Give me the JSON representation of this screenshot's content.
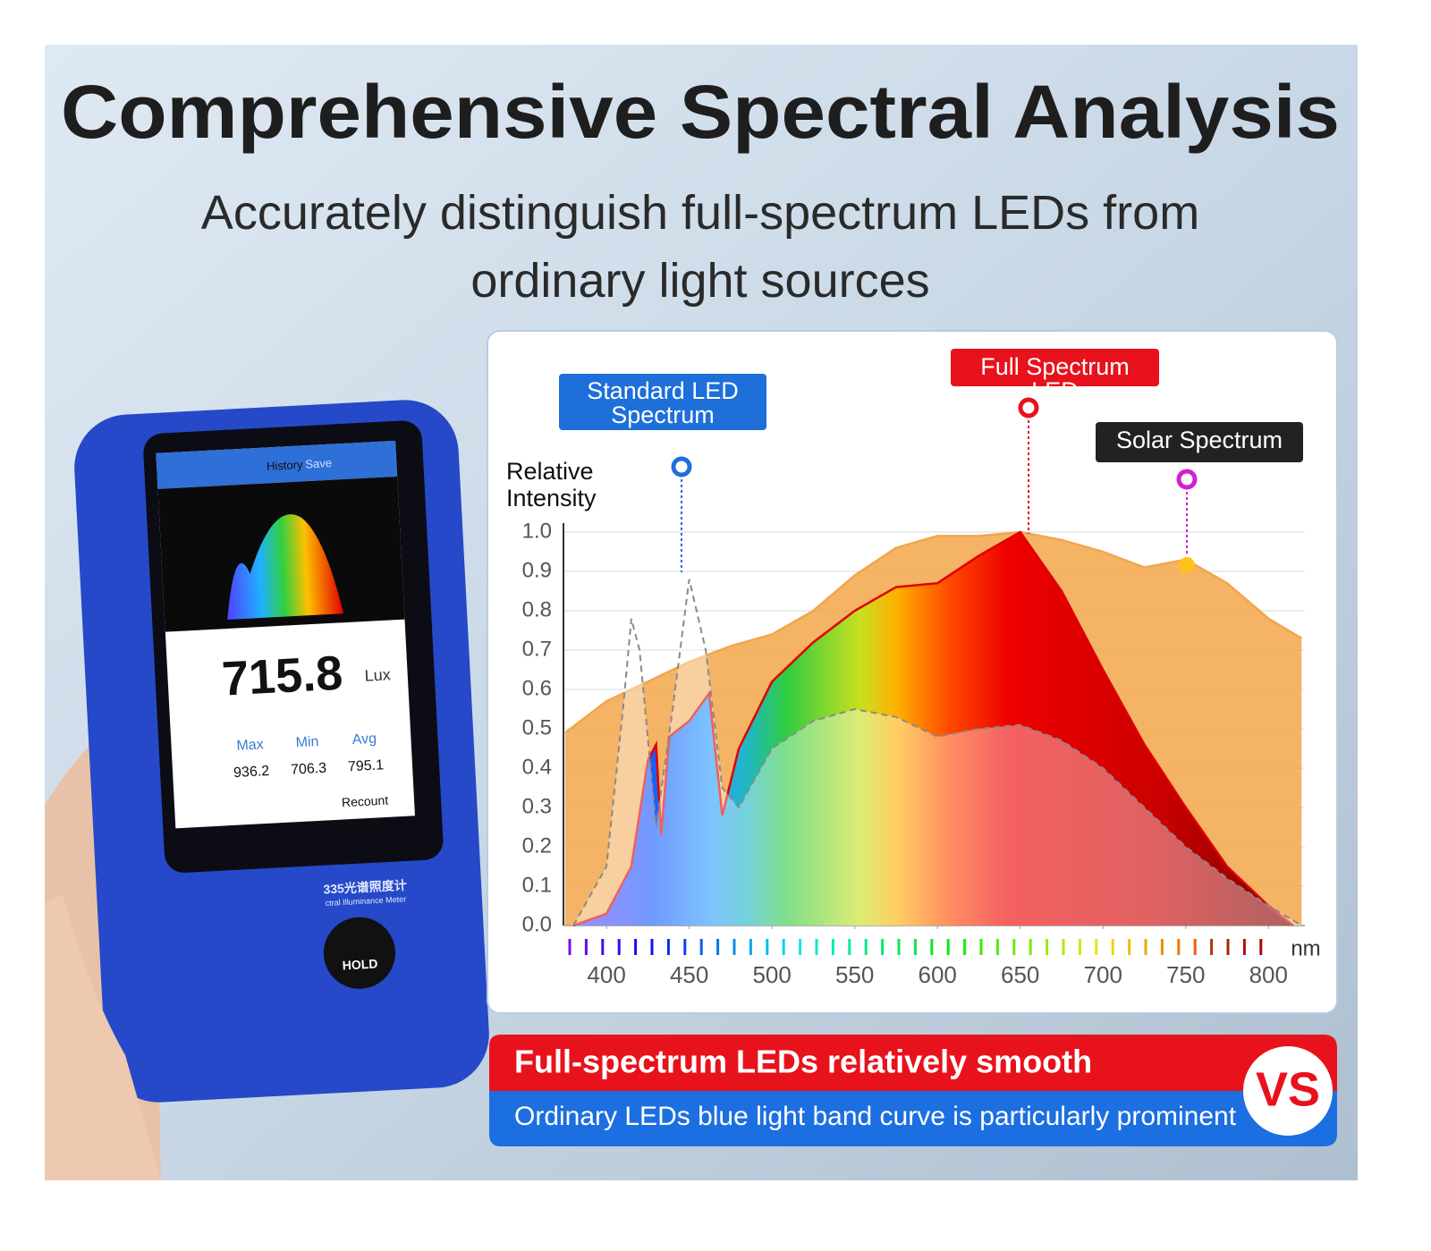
{
  "header": {
    "title": "Comprehensive Spectral Analysis",
    "subtitle": "Accurately distinguish full-spectrum LEDs from ordinary light sources"
  },
  "device": {
    "buttons": [
      "History",
      "Save"
    ],
    "reading": "715.8",
    "unit": "Lux",
    "stats": [
      {
        "label": "Max",
        "value": "936.2"
      },
      {
        "label": "Min",
        "value": "706.3"
      },
      {
        "label": "Avg",
        "value": "795.1"
      }
    ],
    "recount": "Recount",
    "model": "335光谱照度计",
    "model_sub": "ctral Illuminance Meter",
    "hold": "HOLD"
  },
  "chart_data": {
    "type": "area",
    "y_label": "Relative Intensity",
    "x_label": "nm",
    "xlim": [
      374,
      822
    ],
    "ylim": [
      0,
      1
    ],
    "xticks": [
      400,
      450,
      500,
      550,
      600,
      650,
      700,
      750,
      800
    ],
    "yticks": [
      {
        "value": 0,
        "label": "0.0"
      },
      0.1,
      0.2,
      0.3,
      0.4,
      0.5,
      0.6,
      0.7,
      0.8,
      0.9,
      {
        "value": 1,
        "label": "1.0"
      }
    ],
    "grid": true,
    "series": [
      {
        "name": "Solar Spectrum",
        "color": "#f2a64a",
        "x": [
          375,
          400,
          425,
          450,
          475,
          500,
          525,
          550,
          575,
          600,
          625,
          650,
          675,
          700,
          725,
          750,
          775,
          800,
          820
        ],
        "values": [
          0.49,
          0.57,
          0.62,
          0.67,
          0.71,
          0.74,
          0.8,
          0.89,
          0.96,
          0.99,
          0.99,
          1.0,
          0.98,
          0.95,
          0.91,
          0.93,
          0.87,
          0.78,
          0.73
        ]
      },
      {
        "name": "Full Spectrum LED",
        "color": "#e00000",
        "gradient": true,
        "x": [
          380,
          400,
          415,
          425,
          430,
          433,
          438,
          450,
          462,
          470,
          480,
          500,
          525,
          550,
          575,
          600,
          625,
          650,
          675,
          700,
          725,
          750,
          775,
          800,
          815
        ],
        "values": [
          0.0,
          0.03,
          0.15,
          0.42,
          0.46,
          0.23,
          0.48,
          0.52,
          0.59,
          0.28,
          0.45,
          0.62,
          0.72,
          0.8,
          0.86,
          0.87,
          0.94,
          1.0,
          0.85,
          0.65,
          0.46,
          0.3,
          0.15,
          0.05,
          0.0
        ]
      },
      {
        "name": "Standard LED Spectrum",
        "color": "#8a8a8a",
        "dashed": true,
        "x": [
          380,
          400,
          410,
          415,
          420,
          430,
          440,
          450,
          460,
          470,
          480,
          500,
          525,
          550,
          575,
          600,
          625,
          650,
          675,
          700,
          725,
          750,
          775,
          800,
          820
        ],
        "values": [
          0.0,
          0.15,
          0.55,
          0.78,
          0.7,
          0.25,
          0.55,
          0.88,
          0.7,
          0.35,
          0.3,
          0.45,
          0.52,
          0.55,
          0.53,
          0.48,
          0.5,
          0.51,
          0.47,
          0.4,
          0.3,
          0.2,
          0.12,
          0.05,
          0.0
        ]
      }
    ]
  },
  "banner": {
    "top": "Full-spectrum LEDs relatively smooth",
    "bottom": "Ordinary LEDs blue light band curve is particularly prominent",
    "vs": "VS"
  }
}
